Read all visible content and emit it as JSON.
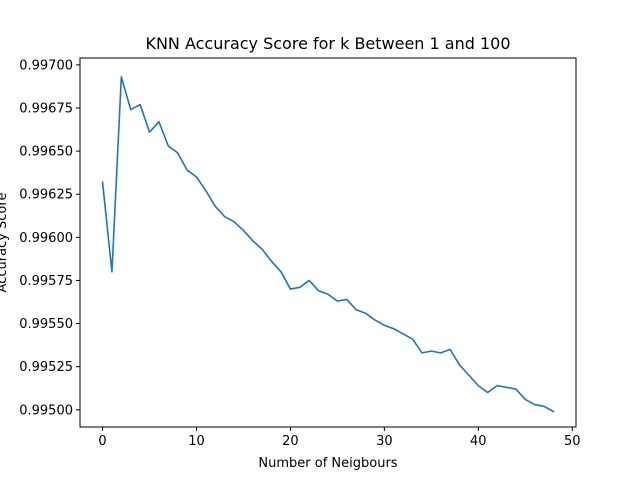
{
  "chart_data": {
    "type": "line",
    "title": "KNN Accuracy Score for k Between 1 and 100",
    "xlabel": "Number of Neigbours",
    "ylabel": "Accuracy Score",
    "xlim": [
      -2.4,
      50.4
    ],
    "ylim": [
      0.9949,
      0.99704
    ],
    "xticks": [
      0,
      10,
      20,
      30,
      40,
      50
    ],
    "xtick_labels": [
      "0",
      "10",
      "20",
      "30",
      "40",
      "50"
    ],
    "yticks": [
      0.995,
      0.99525,
      0.9955,
      0.99575,
      0.996,
      0.99625,
      0.9965,
      0.99675,
      0.997
    ],
    "ytick_labels": [
      "0.99500",
      "0.99525",
      "0.99550",
      "0.99575",
      "0.99600",
      "0.99625",
      "0.99650",
      "0.99675",
      "0.99700"
    ],
    "grid": false,
    "series": [
      {
        "color": "#1f77b4",
        "x": [
          0,
          1,
          2,
          3,
          4,
          5,
          6,
          7,
          8,
          9,
          10,
          11,
          12,
          13,
          14,
          15,
          16,
          17,
          18,
          19,
          20,
          21,
          22,
          23,
          24,
          25,
          26,
          27,
          28,
          29,
          30,
          31,
          32,
          33,
          34,
          35,
          36,
          37,
          38,
          39,
          40,
          41,
          42,
          43,
          44,
          45,
          46,
          47,
          48
        ],
        "y": [
          0.99632,
          0.9958,
          0.99693,
          0.99674,
          0.99677,
          0.99661,
          0.99667,
          0.99653,
          0.99649,
          0.99639,
          0.99635,
          0.99627,
          0.99618,
          0.99612,
          0.99609,
          0.99604,
          0.99598,
          0.99593,
          0.99586,
          0.9958,
          0.9957,
          0.99571,
          0.99575,
          0.99569,
          0.99567,
          0.99563,
          0.99564,
          0.99558,
          0.99556,
          0.99552,
          0.99549,
          0.99547,
          0.99544,
          0.99541,
          0.99533,
          0.99534,
          0.99533,
          0.99535,
          0.99526,
          0.9952,
          0.99514,
          0.9951,
          0.99514,
          0.99513,
          0.99512,
          0.99506,
          0.99503,
          0.99502,
          0.99499
        ]
      }
    ]
  }
}
